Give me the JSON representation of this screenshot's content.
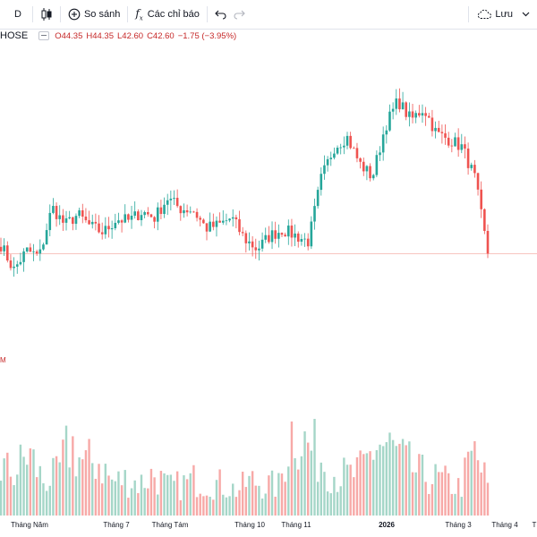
{
  "toolbar": {
    "interval": "D",
    "compare_label": "So sánh",
    "indicators_label": "Các chỉ báo",
    "save_label": "Lưu"
  },
  "legend": {
    "exchange": "HOSE",
    "open": "O44.35",
    "high": "H44.35",
    "low": "L42.60",
    "close": "C42.60",
    "change": "−1.75 (−3.95%)"
  },
  "volume_label": "M",
  "colors": {
    "up": "#26a69a",
    "down": "#ef5350",
    "up_volume": "#a5d6c8",
    "down_volume": "#f7a9a7",
    "price_line": "#f28b82"
  },
  "x_axis": {
    "labels": [
      "Tháng Năm",
      "Tháng 7",
      "Tháng Tám",
      "Tháng 10",
      "Tháng 11",
      "2026",
      "Tháng 3",
      "Tháng 4",
      "T"
    ]
  },
  "chart_data": {
    "type": "candlestick",
    "last_close": 42.6,
    "price_path": [
      43.2,
      41.5,
      42.8,
      42.4,
      45.7,
      44.5,
      45.2,
      44.4,
      44.0,
      44.9,
      44.8,
      45.4,
      45.0,
      46.3,
      45.6,
      45.5,
      44.3,
      44.5,
      45.0,
      43.6,
      42.9,
      43.8,
      44.2,
      43.8,
      43.4,
      47.6,
      49.7,
      50.4,
      48.6,
      47.7,
      51.1,
      52.8,
      51.5,
      52.3,
      50.6,
      50.2,
      49.7,
      47.6,
      42.6
    ],
    "volume_path": [
      0.34,
      0.3,
      0.45,
      0.25,
      0.28,
      0.52,
      0.36,
      0.4,
      0.24,
      0.26,
      0.23,
      0.3,
      0.2,
      0.22,
      0.26,
      0.24,
      0.22,
      0.18,
      0.25,
      0.22,
      0.21,
      0.65,
      0.5,
      0.42,
      0.3,
      0.28,
      0.32,
      0.52,
      0.48,
      0.38,
      0.3,
      0.27,
      0.24,
      0.2,
      0.45,
      0.22
    ]
  }
}
